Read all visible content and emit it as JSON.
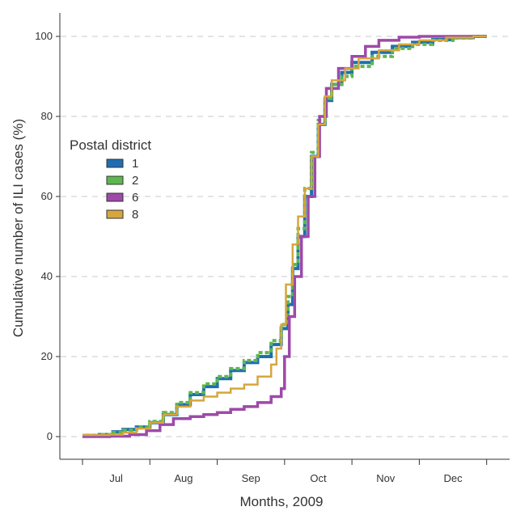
{
  "chart_data": {
    "type": "line",
    "title": "",
    "xlabel": "Months, 2009",
    "ylabel": "Cumulative number of ILI cases (%)",
    "xlim": [
      0,
      6.1
    ],
    "ylim": [
      0,
      100
    ],
    "x_categories": [
      "Jul",
      "Aug",
      "Sep",
      "Oct",
      "Nov",
      "Dec"
    ],
    "x_unit": "months after 1 Jul 2009",
    "y_ticks": [
      0,
      20,
      40,
      60,
      80,
      100
    ],
    "grid": "horizontal dashed",
    "legend": {
      "title": "Postal district",
      "placement": "left"
    },
    "series": [
      {
        "name": "1",
        "color": "#1f6eb0",
        "width": 4,
        "points": [
          [
            0,
            0.3
          ],
          [
            0.25,
            0.5
          ],
          [
            0.45,
            1.2
          ],
          [
            0.6,
            1.8
          ],
          [
            0.8,
            2.4
          ],
          [
            1.0,
            3.5
          ],
          [
            1.2,
            5.5
          ],
          [
            1.4,
            8.0
          ],
          [
            1.6,
            10.5
          ],
          [
            1.8,
            12.5
          ],
          [
            2.0,
            14.5
          ],
          [
            2.2,
            16.5
          ],
          [
            2.4,
            18.5
          ],
          [
            2.6,
            20.0
          ],
          [
            2.8,
            23.0
          ],
          [
            2.95,
            27.0
          ],
          [
            3.05,
            33.0
          ],
          [
            3.12,
            42.0
          ],
          [
            3.2,
            50.0
          ],
          [
            3.3,
            60.0
          ],
          [
            3.4,
            70.0
          ],
          [
            3.5,
            78.0
          ],
          [
            3.6,
            84.0
          ],
          [
            3.7,
            88.0
          ],
          [
            3.85,
            91.0
          ],
          [
            4.0,
            93.5
          ],
          [
            4.3,
            96.0
          ],
          [
            4.6,
            97.5
          ],
          [
            4.9,
            98.5
          ],
          [
            5.2,
            99.2
          ],
          [
            5.5,
            99.7
          ],
          [
            5.8,
            100.0
          ],
          [
            6.0,
            100.0
          ]
        ]
      },
      {
        "name": "2",
        "color": "#5cb84d",
        "width": 4,
        "dashed": true,
        "points": [
          [
            0,
            0.3
          ],
          [
            0.25,
            0.5
          ],
          [
            0.45,
            1.0
          ],
          [
            0.6,
            1.6
          ],
          [
            0.8,
            2.4
          ],
          [
            1.0,
            3.8
          ],
          [
            1.2,
            6.0
          ],
          [
            1.4,
            8.5
          ],
          [
            1.6,
            11.0
          ],
          [
            1.8,
            13.2
          ],
          [
            2.0,
            15.0
          ],
          [
            2.2,
            17.0
          ],
          [
            2.4,
            19.0
          ],
          [
            2.6,
            21.0
          ],
          [
            2.8,
            24.0
          ],
          [
            2.95,
            28.0
          ],
          [
            3.05,
            35.0
          ],
          [
            3.12,
            43.0
          ],
          [
            3.2,
            52.0
          ],
          [
            3.3,
            62.0
          ],
          [
            3.4,
            71.0
          ],
          [
            3.5,
            79.0
          ],
          [
            3.6,
            84.5
          ],
          [
            3.7,
            88.0
          ],
          [
            3.85,
            90.0
          ],
          [
            4.0,
            92.5
          ],
          [
            4.3,
            95.0
          ],
          [
            4.6,
            97.0
          ],
          [
            4.9,
            98.0
          ],
          [
            5.2,
            99.0
          ],
          [
            5.5,
            99.6
          ],
          [
            5.8,
            100.0
          ],
          [
            6.0,
            100.0
          ]
        ]
      },
      {
        "name": "6",
        "color": "#9d4aa8",
        "width": 3.5,
        "points": [
          [
            0,
            0.0
          ],
          [
            0.4,
            0.1
          ],
          [
            0.7,
            0.5
          ],
          [
            0.95,
            1.5
          ],
          [
            1.15,
            3.0
          ],
          [
            1.35,
            4.5
          ],
          [
            1.6,
            5.0
          ],
          [
            1.8,
            5.5
          ],
          [
            2.0,
            6.0
          ],
          [
            2.2,
            6.8
          ],
          [
            2.4,
            7.5
          ],
          [
            2.6,
            8.5
          ],
          [
            2.8,
            10.0
          ],
          [
            2.95,
            12.0
          ],
          [
            3.0,
            20.0
          ],
          [
            3.07,
            30.0
          ],
          [
            3.15,
            40.0
          ],
          [
            3.25,
            50.0
          ],
          [
            3.35,
            60.0
          ],
          [
            3.45,
            70.0
          ],
          [
            3.52,
            80.0
          ],
          [
            3.62,
            87.0
          ],
          [
            3.8,
            92.0
          ],
          [
            4.0,
            95.0
          ],
          [
            4.2,
            97.5
          ],
          [
            4.4,
            99.0
          ],
          [
            4.7,
            99.8
          ],
          [
            5.0,
            100.0
          ],
          [
            6.0,
            100.0
          ]
        ]
      },
      {
        "name": "8",
        "color": "#d6a63e",
        "width": 2.5,
        "points": [
          [
            0,
            0.4
          ],
          [
            0.4,
            0.5
          ],
          [
            0.6,
            1.0
          ],
          [
            0.8,
            2.0
          ],
          [
            1.0,
            3.5
          ],
          [
            1.2,
            5.5
          ],
          [
            1.4,
            7.5
          ],
          [
            1.6,
            9.0
          ],
          [
            1.8,
            10.0
          ],
          [
            2.0,
            11.0
          ],
          [
            2.2,
            12.0
          ],
          [
            2.4,
            13.0
          ],
          [
            2.6,
            15.0
          ],
          [
            2.8,
            18.0
          ],
          [
            2.88,
            22.0
          ],
          [
            2.95,
            28.0
          ],
          [
            3.02,
            38.0
          ],
          [
            3.12,
            48.0
          ],
          [
            3.2,
            55.0
          ],
          [
            3.3,
            62.0
          ],
          [
            3.4,
            70.0
          ],
          [
            3.5,
            78.0
          ],
          [
            3.6,
            85.0
          ],
          [
            3.7,
            89.0
          ],
          [
            3.9,
            92.0
          ],
          [
            4.1,
            94.5
          ],
          [
            4.4,
            96.5
          ],
          [
            4.7,
            98.0
          ],
          [
            5.0,
            99.0
          ],
          [
            5.4,
            99.7
          ],
          [
            5.8,
            100.0
          ],
          [
            6.0,
            100.0
          ]
        ]
      }
    ]
  }
}
